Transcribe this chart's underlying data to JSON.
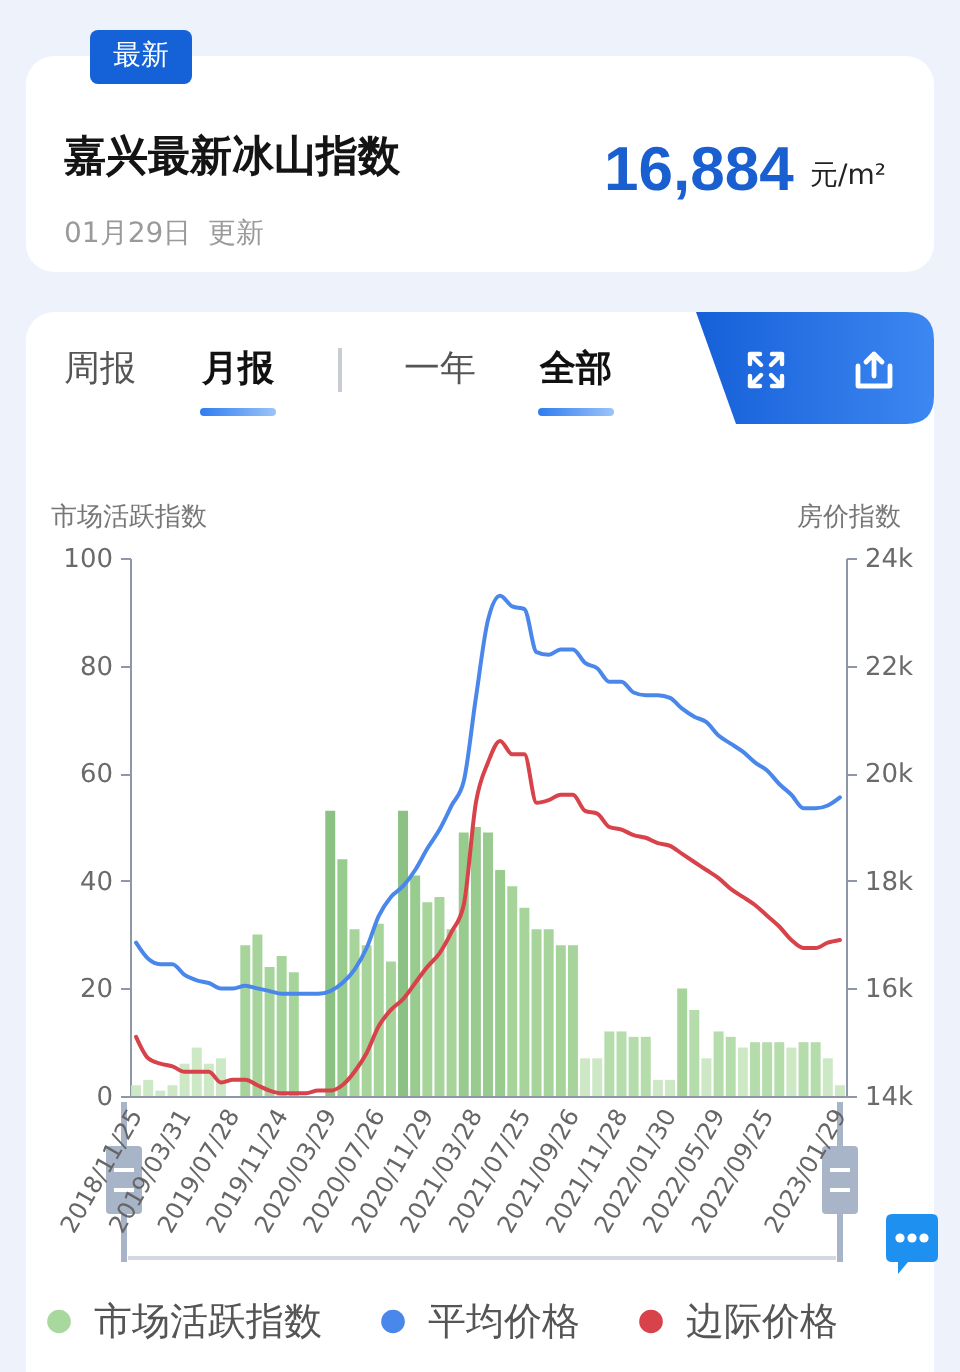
{
  "chart_data": {
    "type": "bar",
    "title": "嘉兴最新冰山指数",
    "annotations": [
      "最新",
      "16,884",
      "元/m²",
      "01月29日 更新",
      "周报",
      "月报",
      "一年",
      "全部"
    ],
    "categories": [
      "2018/11/25",
      null,
      null,
      null,
      "2019/03/31",
      null,
      null,
      null,
      "2019/07/28",
      null,
      null,
      null,
      "2019/11/24",
      null,
      null,
      null,
      "2020/03/29",
      null,
      null,
      null,
      "2020/07/26",
      null,
      null,
      null,
      "2020/11/29",
      null,
      null,
      null,
      "2021/03/28",
      null,
      null,
      null,
      "2021/07/25",
      null,
      null,
      null,
      "2021/09/26",
      null,
      null,
      null,
      "2021/11/28",
      null,
      null,
      null,
      "2022/01/30",
      null,
      null,
      null,
      "2022/05/29",
      null,
      null,
      null,
      "2022/09/25",
      null,
      null,
      null,
      null,
      null,
      "2023/01/29"
    ],
    "series": [
      {
        "name": "市场活跃指数",
        "color": "#a8d89e",
        "values": [
          2,
          3,
          1,
          2,
          6,
          9,
          6,
          7,
          null,
          28,
          30,
          24,
          26,
          23,
          null,
          null,
          53,
          44,
          31,
          28,
          32,
          25,
          53,
          41,
          36,
          37,
          31,
          49,
          50,
          49,
          42,
          39,
          35,
          31,
          31,
          28,
          28,
          7,
          7,
          12,
          12,
          11,
          11,
          3,
          3,
          20,
          16,
          7,
          12,
          11,
          9,
          10,
          10,
          10,
          9,
          10,
          10,
          7,
          2
        ],
        "colors": [
          "#cce8c4",
          "#cce8c4",
          "#cce8c4",
          "#cce8c4",
          "#cce8c4",
          "#cce8c4",
          "#cce8c4",
          "#cce8c4",
          null,
          "#a6d49b",
          "#a6d49b",
          "#a6d49b",
          "#a6d49b",
          "#a6d49b",
          null,
          null,
          "#8bc284",
          "#98cb8e",
          "#a6d49b",
          "#a6d49b",
          "#a6d49b",
          "#a6d49b",
          "#8bc284",
          "#98cb8e",
          "#a6d49b",
          "#a6d49b",
          "#a6d49b",
          "#98cb8e",
          "#98cb8e",
          "#98cb8e",
          "#98cb8e",
          "#a6d49b",
          "#a6d49b",
          "#a6d49b",
          "#a6d49b",
          "#a6d49b",
          "#a6d49b",
          "#cce8c4",
          "#cce8c4",
          "#b5dcab",
          "#b5dcab",
          "#b5dcab",
          "#b5dcab",
          "#cce8c4",
          "#cce8c4",
          "#a6d49b",
          "#b5dcab",
          "#cce8c4",
          "#b5dcab",
          "#b5dcab",
          "#cce8c4",
          "#b5dcab",
          "#b5dcab",
          "#b5dcab",
          "#cce8c4",
          "#b5dcab",
          "#b5dcab",
          "#cce8c4",
          "#cce8c4"
        ]
      },
      {
        "name": "平均价格",
        "type": "line",
        "axis": "y2",
        "color": "#4a87ea",
        "values": [
          16850,
          16550,
          16450,
          16450,
          16250,
          16150,
          16100,
          16000,
          16000,
          16050,
          16000,
          15950,
          15900,
          15900,
          15900,
          15900,
          15950,
          16100,
          16350,
          16750,
          17350,
          17700,
          17900,
          18200,
          18600,
          18950,
          19400,
          19850,
          21400,
          22850,
          23300,
          23100,
          23050,
          22250,
          22200,
          22300,
          22300,
          22050,
          21950,
          21700,
          21700,
          21500,
          21450,
          21450,
          21400,
          21200,
          21050,
          20950,
          20700,
          20550,
          20400,
          20200,
          20050,
          19800,
          19600,
          19350,
          19350,
          19400,
          19550
        ]
      },
      {
        "name": "边际价格",
        "type": "line",
        "axis": "y2",
        "color": "#d8424a",
        "values": [
          15100,
          14700,
          14600,
          14550,
          14450,
          14450,
          14450,
          14250,
          14300,
          14300,
          14200,
          14100,
          14050,
          14050,
          14050,
          14100,
          14100,
          14200,
          14450,
          14800,
          15300,
          15600,
          15800,
          16100,
          16400,
          16650,
          17050,
          17550,
          19450,
          20200,
          20600,
          20350,
          20350,
          19450,
          19500,
          19600,
          19600,
          19300,
          19250,
          19000,
          18950,
          18850,
          18800,
          18700,
          18650,
          18500,
          18350,
          18200,
          18050,
          17850,
          17700,
          17550,
          17350,
          17150,
          16900,
          16750,
          16750,
          16850,
          16900
        ]
      }
    ],
    "ylabel": "市场活跃指数",
    "y2label": "房价指数",
    "ylim": [
      0,
      100
    ],
    "yticks": [
      0,
      20,
      40,
      60,
      80,
      100
    ],
    "y2lim": [
      14000,
      24000
    ],
    "y2ticks": [
      {
        "value": 14000,
        "label": "14k"
      },
      {
        "value": 16000,
        "label": "16k"
      },
      {
        "value": 18000,
        "label": "18k"
      },
      {
        "value": 20000,
        "label": "20k"
      },
      {
        "value": 22000,
        "label": "22k"
      },
      {
        "value": 24000,
        "label": "24k"
      }
    ],
    "grid": false,
    "legend": "bottom"
  }
}
